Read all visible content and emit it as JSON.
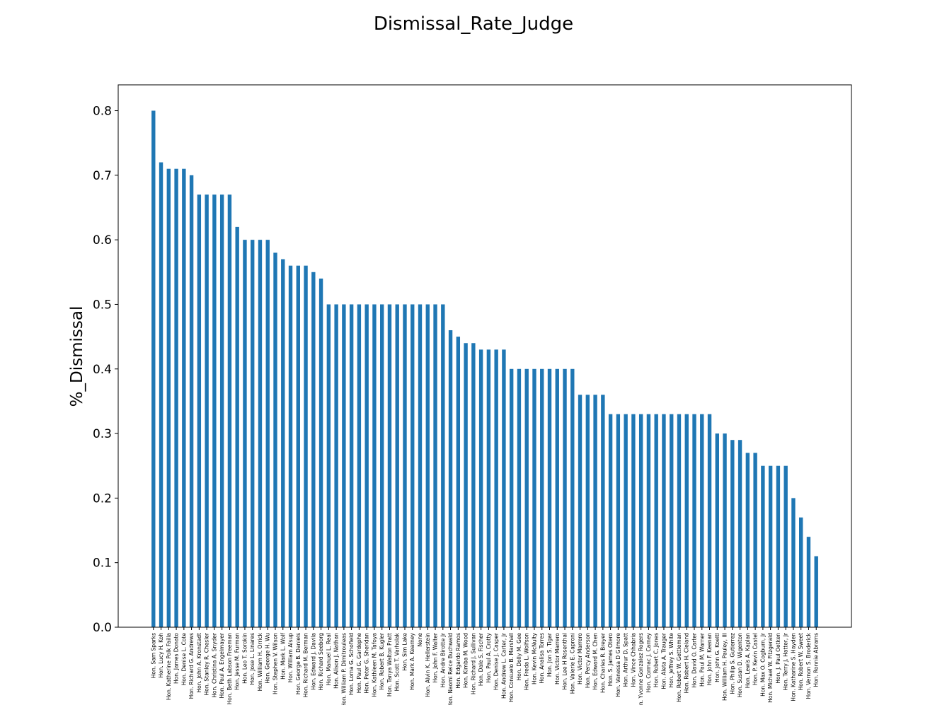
{
  "chart_data": {
    "type": "bar",
    "title": "Dismissal_Rate_Judge",
    "y_label": "%_Dismissal",
    "color": "#1f77b4",
    "categories": [
      "Hon. Sam Sparks",
      "Hon. Lucy H. Koh",
      "Hon. Katherine Polk Failla",
      "Hon. James Donato",
      "Hon. Denise L. Cote",
      "Hon. Richard G. Andrews",
      "Hon. John A. Kronstadt",
      "Hon. Stanley R. Chesler",
      "Hon. Christina A. Snyder",
      "Hon. Paul A. Engelmayer",
      "Hon. Beth Labson Freeman",
      "Hon. Jesse M. Furman",
      "Hon. Leo T. Sorokin",
      "Hon. Jose L. Linares",
      "Hon. William H. Orrick",
      "Hon. George H. Wu",
      "Hon. Stephen V. Wilson",
      "Hon. Mark L. Wolf",
      "Hon. William Alsup",
      "Hon. George B. Daniels",
      "Hon. Richard M. Berman",
      "Hon. Edward J. Davila",
      "Hon. Richard Seeborg",
      "Hon. Manuel L. Real",
      "Hon. Alison J. Nathan",
      "Hon. William P. Dimitrouleas",
      "Hon. Lorna G. Schofield",
      "Hon. Paul G. Gardephe",
      "Hon. Peter G. Sheridan",
      "Hon. Kathleen M. Tafoya",
      "Hon. Robert B. Kugler",
      "Hon. Tanya Walton Pratt",
      "Hon. Scott T. Varholak",
      "Hon. Sim Lake",
      "Hon. Mark A. Kearney",
      "None",
      "Hon. Alvin K. Hellerstein",
      "Hon. John F. Walter",
      "Hon. Andre Birotte Jr",
      "Hon. Naomi Reice Buchwald",
      "Hon. Edgardo Ramos",
      "Hon. Kimba M. Wood",
      "Hon. Richard J. Sullivan",
      "Hon. Dale S. Fischer",
      "Hon. Paul A. Crotty",
      "Hon. Denise J. Casper",
      "Hon. Andrew L. Carter, Jr",
      "Hon. Consuelo B. Marshall",
      "Hon. Dolly M. Gee",
      "Hon. Freda L. Wolfson",
      "Hon. Kevin McNulty",
      "Hon. Analisa Torres",
      "Hon. Jon S. Tigar",
      "Hon. Victor Marrero",
      "Hon. Lee H Rosenthal",
      "Hon. Valerie E. Caproni",
      "Hon. Victor Marrero",
      "Hon. Percy Anderson",
      "Hon. Edward M. Chen",
      "Hon. Charles R. Breyer",
      "Hon. S. James Otero",
      "Hon. Vanessa D Gilmore",
      "Hon. Arthur D. Spatt",
      "Hon. Vince Chhabria",
      "Hon. Yvonne Gonzalez Rogers",
      "Hon. Cormac J. Carney",
      "Hon. Robert C. Jones",
      "Hon. Aleta A. Trauger",
      "Hon. Jeffrey S. White",
      "Hon. Robert W. Gettleman",
      "Hon. Robert H. Cleland",
      "Hon. David O. Carter",
      "Hon. Paul M. Warner",
      "Hon. John F. Keenan",
      "Hon. John G. Koeltl",
      "Hon. William H. Pauley, III",
      "Hon. Philip S. Gutierrez",
      "Hon. Susan D. Wigenton",
      "Hon. Lewis A. Kaplan",
      "Hon. P. Kevin Castel",
      "Hon. Max O. Cogburn, Jr",
      "Hon. Michael W. Fitzgerald",
      "Hon. J. Paul Oetken",
      "Hon. Terry J. Hatter, Jr",
      "Hon. Katharine S. Hayden",
      "Hon. Robert W. Sweet",
      "Hon. Vernon S. Broderick",
      "Hon. Ronnie Abrams"
    ],
    "values": [
      0.8,
      0.72,
      0.71,
      0.71,
      0.71,
      0.7,
      0.67,
      0.67,
      0.67,
      0.67,
      0.67,
      0.62,
      0.6,
      0.6,
      0.6,
      0.6,
      0.58,
      0.57,
      0.56,
      0.56,
      0.56,
      0.55,
      0.54,
      0.5,
      0.5,
      0.5,
      0.5,
      0.5,
      0.5,
      0.5,
      0.5,
      0.5,
      0.5,
      0.5,
      0.5,
      0.5,
      0.5,
      0.5,
      0.5,
      0.46,
      0.45,
      0.44,
      0.44,
      0.43,
      0.43,
      0.43,
      0.43,
      0.4,
      0.4,
      0.4,
      0.4,
      0.4,
      0.4,
      0.4,
      0.4,
      0.4,
      0.36,
      0.36,
      0.36,
      0.36,
      0.33,
      0.33,
      0.33,
      0.33,
      0.33,
      0.33,
      0.33,
      0.33,
      0.33,
      0.33,
      0.33,
      0.33,
      0.33,
      0.33,
      0.3,
      0.3,
      0.29,
      0.29,
      0.27,
      0.27,
      0.25,
      0.25,
      0.25,
      0.25,
      0.2,
      0.17,
      0.14,
      0.11
    ],
    "ylim": [
      0,
      0.84
    ],
    "yticks": [
      {
        "value": 0,
        "label": "0.0"
      },
      {
        "value": 0.1,
        "label": "0.1"
      },
      {
        "value": 0.2,
        "label": "0.2"
      },
      {
        "value": 0.3,
        "label": "0.3"
      },
      {
        "value": 0.4,
        "label": "0.4"
      },
      {
        "value": 0.5,
        "label": "0.5"
      },
      {
        "value": 0.6,
        "label": "0.6"
      },
      {
        "value": 0.7,
        "label": "0.7"
      },
      {
        "value": 0.8,
        "label": "0.8"
      }
    ]
  }
}
